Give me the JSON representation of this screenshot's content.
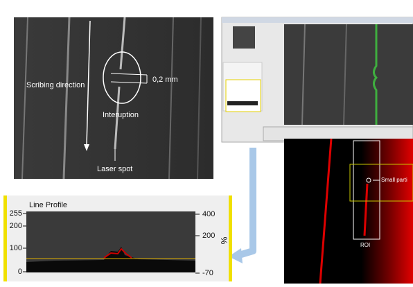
{
  "microscope": {
    "direction_label": "Scribing direction",
    "scale_label": "0,2 mm",
    "gap_label": "Interuption",
    "spot_label": "Laser spot"
  },
  "line_profile": {
    "title": "Line Profile",
    "left_ticks": [
      "255",
      "200",
      "100",
      "0"
    ],
    "right_ticks": [
      "400",
      "200",
      "-70"
    ],
    "right_unit": "%"
  },
  "roi_image": {
    "particle_label": "Small parti",
    "roi_label": "ROI"
  }
}
